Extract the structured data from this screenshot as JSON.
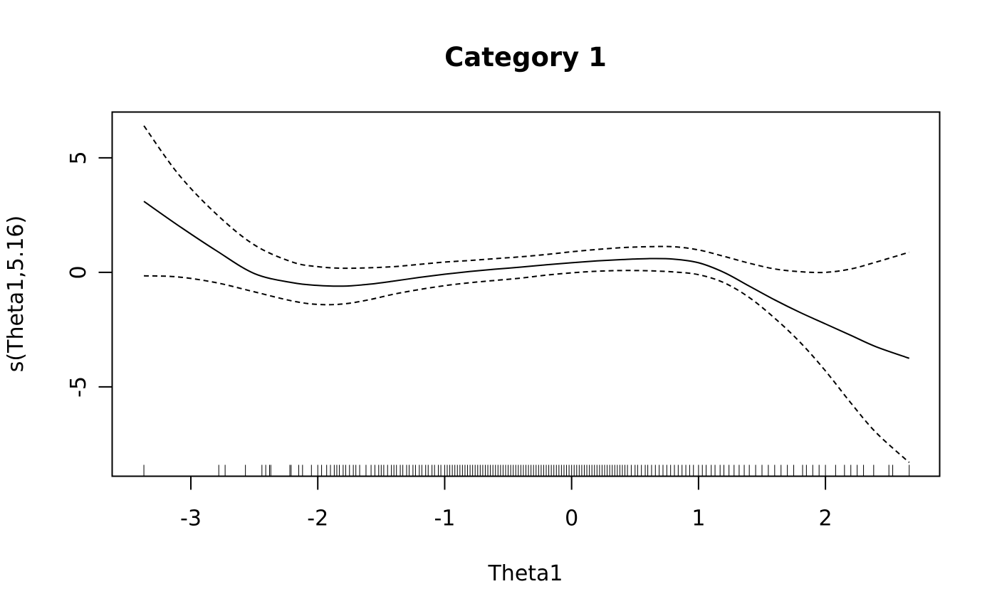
{
  "chart_data": {
    "type": "line",
    "title": "Category 1",
    "xlabel": "Theta1",
    "ylabel": "s(Theta1,5.16)",
    "xlim": [
      -3.62,
      2.9
    ],
    "ylim": [
      -8.9,
      7.0
    ],
    "x_ticks": [
      -3,
      -2,
      -1,
      0,
      1,
      2
    ],
    "x_tick_labels": [
      "-3",
      "-2",
      "-1",
      "0",
      "1",
      "2"
    ],
    "y_ticks": [
      -5,
      0,
      5
    ],
    "y_tick_labels": [
      "-5",
      "0",
      "5"
    ],
    "grid": false,
    "legend": "none",
    "series": [
      {
        "role": "fit",
        "style": "solid",
        "x": [
          -3.37,
          -3.1,
          -2.8,
          -2.5,
          -2.2,
          -2.0,
          -1.8,
          -1.6,
          -1.4,
          -1.2,
          -1.0,
          -0.8,
          -0.6,
          -0.4,
          -0.2,
          0.0,
          0.2,
          0.4,
          0.6,
          0.8,
          1.0,
          1.2,
          1.4,
          1.6,
          1.8,
          2.0,
          2.2,
          2.4,
          2.66
        ],
        "values": [
          3.1,
          2.05,
          0.95,
          -0.05,
          -0.45,
          -0.57,
          -0.6,
          -0.52,
          -0.38,
          -0.22,
          -0.08,
          0.04,
          0.14,
          0.23,
          0.33,
          0.42,
          0.5,
          0.56,
          0.6,
          0.58,
          0.42,
          0.0,
          -0.6,
          -1.2,
          -1.75,
          -2.25,
          -2.75,
          -3.25,
          -3.75
        ]
      },
      {
        "role": "upper-band",
        "style": "dashed",
        "x": [
          -3.37,
          -3.1,
          -2.8,
          -2.5,
          -2.2,
          -2.0,
          -1.8,
          -1.6,
          -1.4,
          -1.2,
          -1.0,
          -0.8,
          -0.6,
          -0.4,
          -0.2,
          0.0,
          0.2,
          0.4,
          0.6,
          0.8,
          1.0,
          1.2,
          1.4,
          1.6,
          1.8,
          2.0,
          2.2,
          2.4,
          2.66
        ],
        "values": [
          6.4,
          4.3,
          2.55,
          1.2,
          0.45,
          0.25,
          0.18,
          0.2,
          0.25,
          0.35,
          0.45,
          0.52,
          0.6,
          0.68,
          0.78,
          0.9,
          1.0,
          1.08,
          1.12,
          1.12,
          0.98,
          0.7,
          0.4,
          0.15,
          0.03,
          0.0,
          0.15,
          0.45,
          0.88
        ]
      },
      {
        "role": "lower-band",
        "style": "dashed",
        "x": [
          -3.37,
          -3.1,
          -2.8,
          -2.5,
          -2.2,
          -2.0,
          -1.8,
          -1.6,
          -1.4,
          -1.2,
          -1.0,
          -0.8,
          -0.6,
          -0.4,
          -0.2,
          0.0,
          0.2,
          0.4,
          0.6,
          0.8,
          1.0,
          1.2,
          1.4,
          1.6,
          1.8,
          2.0,
          2.2,
          2.4,
          2.66
        ],
        "values": [
          -0.15,
          -0.2,
          -0.45,
          -0.85,
          -1.25,
          -1.4,
          -1.38,
          -1.2,
          -0.95,
          -0.75,
          -0.58,
          -0.45,
          -0.35,
          -0.25,
          -0.12,
          -0.02,
          0.05,
          0.08,
          0.07,
          0.02,
          -0.1,
          -0.45,
          -1.1,
          -2.0,
          -3.05,
          -4.3,
          -5.7,
          -7.0,
          -8.3
        ]
      }
    ],
    "rug": [
      -3.37,
      -2.78,
      -2.73,
      -2.57,
      -2.44,
      -2.41,
      -2.38,
      -2.37,
      -2.22,
      -2.21,
      -2.15,
      -2.12,
      -2.05,
      -2.0,
      -1.97,
      -1.93,
      -1.9,
      -1.87,
      -1.85,
      -1.83,
      -1.8,
      -1.78,
      -1.75,
      -1.72,
      -1.7,
      -1.67,
      -1.62,
      -1.58,
      -1.55,
      -1.52,
      -1.5,
      -1.48,
      -1.45,
      -1.42,
      -1.4,
      -1.38,
      -1.35,
      -1.33,
      -1.3,
      -1.28,
      -1.25,
      -1.23,
      -1.2,
      -1.18,
      -1.15,
      -1.13,
      -1.1,
      -1.08,
      -1.05,
      -1.03,
      -1.0,
      -0.98,
      -0.96,
      -0.94,
      -0.92,
      -0.9,
      -0.88,
      -0.86,
      -0.84,
      -0.82,
      -0.8,
      -0.78,
      -0.76,
      -0.74,
      -0.72,
      -0.7,
      -0.68,
      -0.66,
      -0.64,
      -0.62,
      -0.6,
      -0.58,
      -0.56,
      -0.54,
      -0.52,
      -0.5,
      -0.48,
      -0.46,
      -0.44,
      -0.42,
      -0.4,
      -0.38,
      -0.36,
      -0.34,
      -0.32,
      -0.3,
      -0.28,
      -0.26,
      -0.24,
      -0.22,
      -0.2,
      -0.18,
      -0.16,
      -0.14,
      -0.12,
      -0.1,
      -0.08,
      -0.06,
      -0.04,
      -0.02,
      0.0,
      0.02,
      0.04,
      0.06,
      0.08,
      0.1,
      0.12,
      0.14,
      0.16,
      0.18,
      0.2,
      0.22,
      0.24,
      0.26,
      0.28,
      0.3,
      0.32,
      0.34,
      0.36,
      0.38,
      0.4,
      0.42,
      0.44,
      0.47,
      0.5,
      0.52,
      0.55,
      0.58,
      0.6,
      0.63,
      0.66,
      0.69,
      0.72,
      0.75,
      0.78,
      0.81,
      0.84,
      0.87,
      0.9,
      0.93,
      0.96,
      1.0,
      1.03,
      1.06,
      1.1,
      1.13,
      1.17,
      1.2,
      1.24,
      1.28,
      1.32,
      1.36,
      1.4,
      1.45,
      1.5,
      1.55,
      1.6,
      1.65,
      1.7,
      1.75,
      1.82,
      1.85,
      1.9,
      1.95,
      2.0,
      2.08,
      2.15,
      2.2,
      2.25,
      2.3,
      2.38,
      2.5,
      2.53,
      2.66
    ]
  }
}
